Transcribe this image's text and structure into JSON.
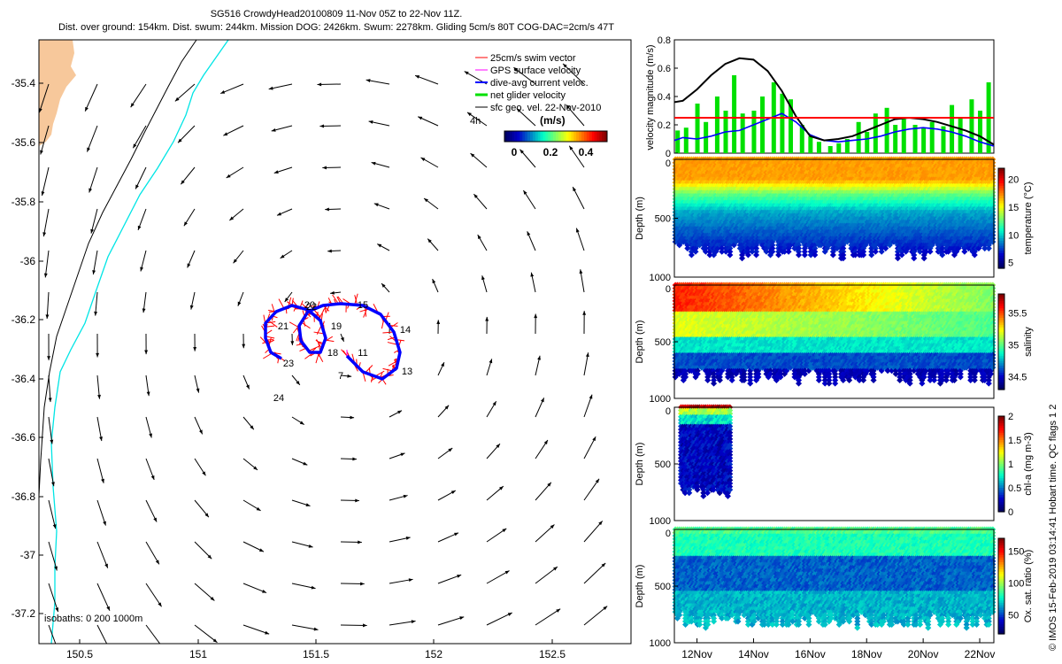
{
  "header": {
    "line1": "SG516 CrowdyHead20100809 11-Nov 05Z to 22-Nov 11Z.",
    "line2": "Dist. over ground: 154km. Dist. swum: 244km. Mission DOG: 2426km. Swum: 2278km. Gliding 5cm/s 80T COG-DAC=2cm/s 47T"
  },
  "colors": {
    "land": "#F7C89B",
    "coast_line": "#000000",
    "isobath_200": "#000000",
    "isobath_1000": "#00E5E5",
    "swim_vector": "#FF0000",
    "gps_velocity": "#FF00FF",
    "dac": "#0000FF",
    "net_velocity": "#00E000",
    "geo_velocity": "#000000",
    "threshold": "#FF0000"
  },
  "legend": {
    "items": [
      {
        "label": "25cm/s swim vector",
        "color": "#FF0000"
      },
      {
        "label": "GPS surface velocity",
        "color": "#FF00FF"
      },
      {
        "label": "dive-avg current veloc.",
        "color": "#0000FF"
      },
      {
        "label": "net glider velocity",
        "color": "#00E000"
      },
      {
        "label": "sfc geo. vel. 22-Nov-2010",
        "color": "#000000"
      }
    ],
    "time_label": "4h",
    "colorbar_title": "(m/s)",
    "colorbar_ticks": [
      "0",
      "0.2",
      "0.4"
    ]
  },
  "isobath_label": "isobaths: 0  200  1000m",
  "side_note": "© IMOS 15-Feb-2019 03:14:41 Hobart time. QC flags 1  2",
  "map": {
    "lon_ticks": [
      "150.5",
      "151",
      "151.5",
      "152",
      "152.5"
    ],
    "lat_ticks": [
      "-35.4",
      "-35.6",
      "-35.8",
      "-36",
      "-36.2",
      "-36.4",
      "-36.6",
      "-36.8",
      "-37",
      "-37.2"
    ],
    "day_labels": [
      {
        "text": "20"
      },
      {
        "text": "21"
      },
      {
        "text": "19"
      },
      {
        "text": "22"
      },
      {
        "text": "23"
      },
      {
        "text": "18"
      },
      {
        "text": "11"
      },
      {
        "text": "7"
      },
      {
        "text": "14"
      },
      {
        "text": "13"
      },
      {
        "text": "15"
      },
      {
        "text": "24"
      }
    ]
  },
  "chart_data": [
    {
      "type": "line",
      "title": "velocity magnitude",
      "ylabel": "velocity magnitude (m/s)",
      "ylim": [
        0,
        0.8
      ],
      "y_ticks": [
        "0",
        "0.2",
        "0.4",
        "0.6",
        "0.8"
      ],
      "x_ticks": [
        "12Nov",
        "14Nov",
        "16Nov",
        "18Nov",
        "20Nov",
        "22Nov"
      ],
      "threshold": 0.25,
      "series": [],
      "black_x": [
        11.2,
        11.5,
        12,
        12.5,
        13,
        13.5,
        14,
        14.5,
        15,
        15.5,
        16,
        16.5,
        17,
        17.5,
        18,
        18.5,
        19,
        19.5,
        20,
        20.5,
        21,
        21.5,
        22,
        22.5
      ],
      "black_y": [
        0.36,
        0.37,
        0.45,
        0.55,
        0.63,
        0.67,
        0.66,
        0.58,
        0.44,
        0.26,
        0.12,
        0.09,
        0.1,
        0.12,
        0.16,
        0.2,
        0.24,
        0.25,
        0.24,
        0.22,
        0.19,
        0.16,
        0.12,
        0.06
      ],
      "blue_x": [
        11.2,
        11.5,
        12,
        12.5,
        13,
        13.5,
        14,
        14.5,
        15,
        15.5,
        16,
        16.5,
        17,
        17.5,
        18,
        18.5,
        19,
        19.5,
        20,
        20.5,
        21,
        21.5,
        22,
        22.5
      ],
      "blue_y": [
        0.09,
        0.11,
        0.1,
        0.12,
        0.15,
        0.16,
        0.2,
        0.24,
        0.28,
        0.22,
        0.13,
        0.09,
        0.08,
        0.09,
        0.1,
        0.12,
        0.15,
        0.17,
        0.18,
        0.17,
        0.15,
        0.12,
        0.08,
        0.05
      ],
      "green_x": [
        11.3,
        11.6,
        12.0,
        12.3,
        12.7,
        13.0,
        13.3,
        13.6,
        14.0,
        14.3,
        14.7,
        15.0,
        15.3,
        15.7,
        16.0,
        16.3,
        16.7,
        17.0,
        17.3,
        17.7,
        18.0,
        18.3,
        18.7,
        19.0,
        19.3,
        19.7,
        20.0,
        20.3,
        20.7,
        21.0,
        21.3,
        21.7,
        22.0,
        22.3
      ],
      "green_y": [
        0.16,
        0.18,
        0.35,
        0.22,
        0.4,
        0.3,
        0.55,
        0.28,
        0.3,
        0.4,
        0.5,
        0.42,
        0.38,
        0.2,
        0.12,
        0.08,
        0.05,
        0.07,
        0.1,
        0.22,
        0.15,
        0.28,
        0.32,
        0.2,
        0.24,
        0.2,
        0.18,
        0.22,
        0.19,
        0.34,
        0.25,
        0.38,
        0.3,
        0.5
      ]
    },
    {
      "type": "scatter",
      "ylabel": "Depth (m)",
      "clabel": "temperature (°C)",
      "ylim": [
        1000,
        0
      ],
      "y_ticks": [
        "0",
        "500",
        "1000"
      ],
      "c_ticks": [
        "20",
        "15",
        "10",
        "5"
      ],
      "clim": [
        4,
        22
      ],
      "x_range": [
        11.2,
        22.5
      ],
      "max_depth": 850
    },
    {
      "type": "scatter",
      "ylabel": "Depth (m)",
      "clabel": "salinity",
      "ylim": [
        1000,
        0
      ],
      "y_ticks": [
        "0",
        "500",
        "1000"
      ],
      "c_ticks": [
        "35.5",
        "35",
        "34.5"
      ],
      "clim": [
        34.3,
        35.8
      ],
      "x_range": [
        11.2,
        22.5
      ],
      "max_depth": 880
    },
    {
      "type": "scatter",
      "ylabel": "Depth (m)",
      "clabel": "chl-a (mg m-3)",
      "ylim": [
        1000,
        0
      ],
      "y_ticks": [
        "0",
        "500",
        "1000"
      ],
      "c_ticks": [
        "2",
        "1.5",
        "1",
        "0.5",
        "0"
      ],
      "clim": [
        0,
        2
      ],
      "x_range": [
        11.4,
        13.2
      ],
      "max_depth": 800
    },
    {
      "type": "scatter",
      "ylabel": "Depth (m)",
      "clabel": "Ox. sat. ratio (%)",
      "ylim": [
        1000,
        0
      ],
      "y_ticks": [
        "0",
        "500",
        "1000"
      ],
      "c_ticks": [
        "150",
        "100",
        "50"
      ],
      "clim": [
        20,
        170
      ],
      "x_range": [
        11.2,
        22.5
      ],
      "max_depth": 870
    }
  ]
}
